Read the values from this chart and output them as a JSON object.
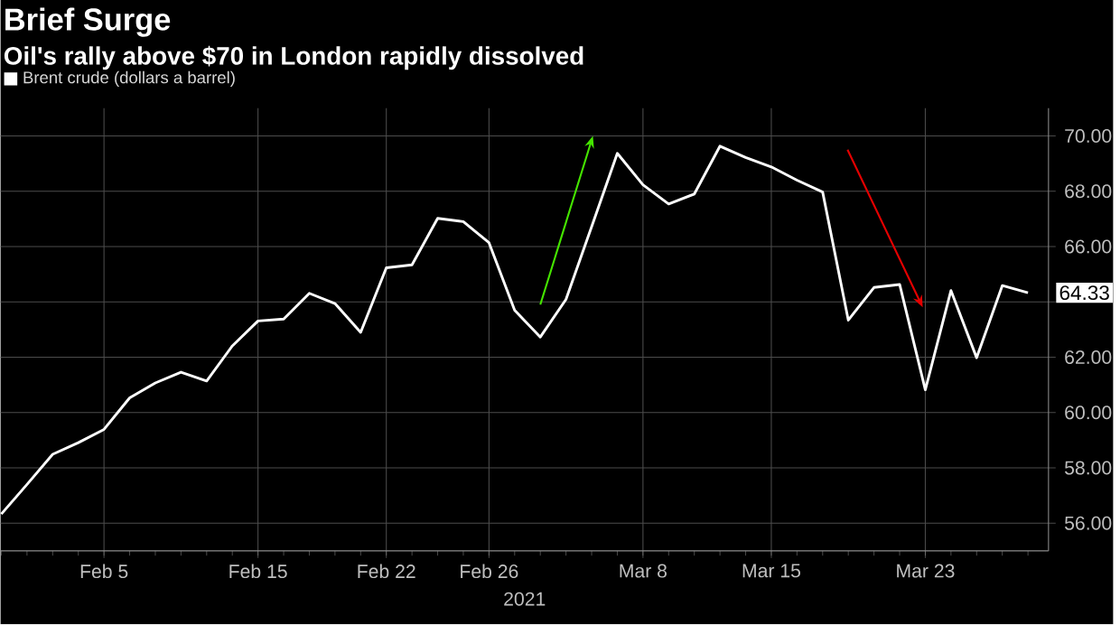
{
  "chart_data": {
    "type": "line",
    "title": "Brief Surge",
    "subtitle": "Oil's rally above $70 in London rapidly dissolved",
    "xlabel": "2021",
    "categories": [
      null,
      null,
      null,
      null,
      "Feb 5",
      null,
      null,
      null,
      null,
      null,
      "Feb 15",
      null,
      null,
      null,
      null,
      "Feb 22",
      null,
      null,
      null,
      "Feb 26",
      null,
      null,
      null,
      null,
      null,
      "Mar 8",
      null,
      null,
      null,
      null,
      "Mar 15",
      null,
      null,
      null,
      null,
      null,
      "Mar 23",
      null,
      null,
      null,
      null
    ],
    "series": [
      {
        "name": "Brent crude (dollars a barrel)",
        "color": "#ffffff",
        "values": [
          56.33,
          57.4,
          58.49,
          58.91,
          59.39,
          60.53,
          61.07,
          61.46,
          61.14,
          62.41,
          63.31,
          63.38,
          64.31,
          63.94,
          62.9,
          65.23,
          65.34,
          67.02,
          66.9,
          66.14,
          63.7,
          62.73,
          64.09,
          66.72,
          69.37,
          68.23,
          67.54,
          67.9,
          69.63,
          69.22,
          68.88,
          68.4,
          67.97,
          63.34,
          64.52,
          64.63,
          60.82,
          64.41,
          61.98,
          64.59,
          64.33
        ],
        "value_labels": [
          null,
          null,
          null,
          null,
          null,
          null,
          null,
          null,
          null,
          null,
          null,
          null,
          null,
          null,
          null,
          null,
          null,
          null,
          null,
          null,
          null,
          null,
          null,
          null,
          null,
          null,
          null,
          null,
          null,
          null,
          null,
          null,
          null,
          null,
          null,
          null,
          null,
          null,
          null,
          null,
          "64.33"
        ]
      }
    ],
    "ylim": [
      55,
      71
    ],
    "yticks": [
      {
        "value": 56,
        "label": "56.00"
      },
      {
        "value": 58,
        "label": "58.00"
      },
      {
        "value": 60,
        "label": "60.00"
      },
      {
        "value": 62,
        "label": "62.00"
      },
      {
        "value": 64,
        "label": null
      },
      {
        "value": 66,
        "label": "66.00"
      },
      {
        "value": 68,
        "label": "68.00"
      },
      {
        "value": 70,
        "label": "70.00"
      }
    ],
    "grid": true,
    "legend": "top left",
    "marker": "none",
    "line_style": "solid"
  }
}
